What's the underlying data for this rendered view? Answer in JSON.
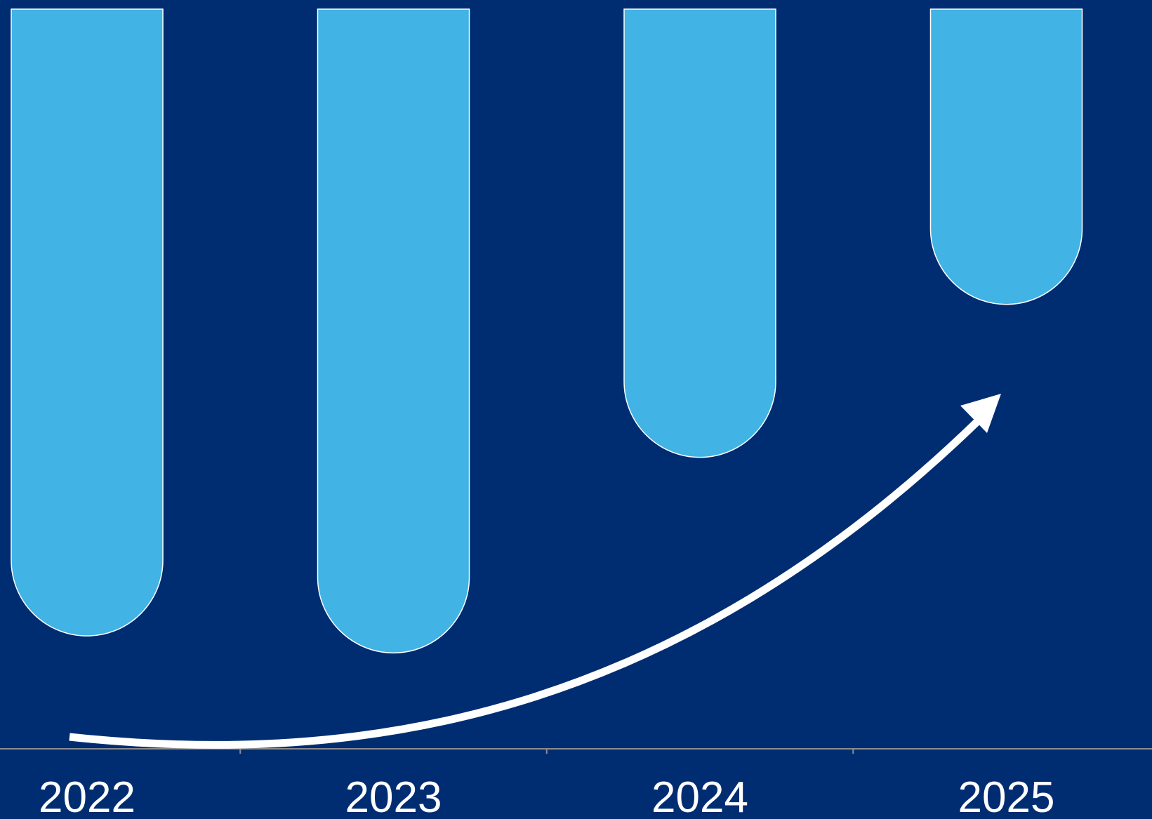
{
  "colors": {
    "background": "#002D72",
    "bar_fill": "#41B3E5",
    "bar_outline": "#FFFFFF",
    "axis_line": "#8C8C8C",
    "arrow": "#FFFFFF",
    "tick_text": "#FFFFFF"
  },
  "chart_data": {
    "type": "bar",
    "orientation": "vertical",
    "title": "",
    "xlabel": "",
    "ylabel": "",
    "categories": [
      "2022",
      "2023",
      "2024",
      "2025"
    ],
    "values": [
      100,
      102.7,
      71.5,
      47.1
    ],
    "value_units": "relative (largest-to-smallest trend, no values printed)",
    "bar_style": "rounded bottom ends, hanging from top",
    "ylim": [
      0,
      118
    ],
    "grid": false,
    "legend": "none",
    "annotation": "curved upward trend arrow from left to right"
  }
}
